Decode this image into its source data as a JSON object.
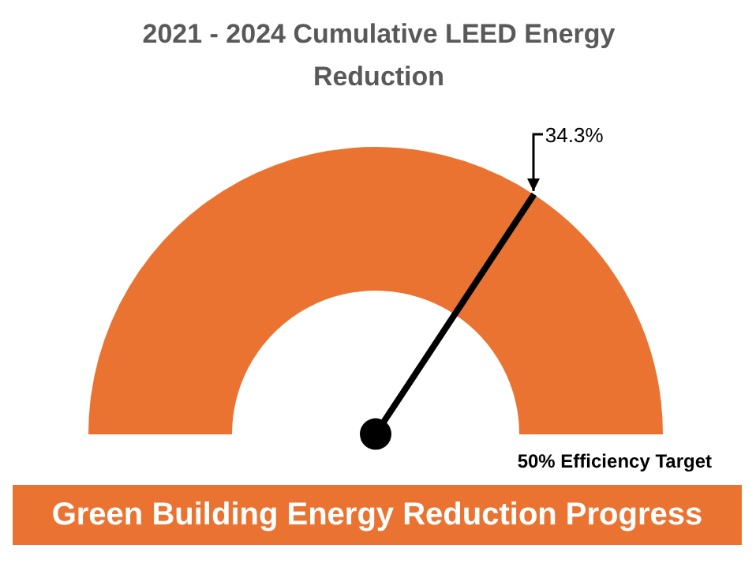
{
  "chart_data": {
    "type": "donut",
    "title": "2021 - 2024 Cumulative LEED Energy Reduction",
    "subtitle": "Green Building Energy Reduction Progress",
    "categories": [
      null,
      null
    ],
    "values": [
      68.6,
      31.4
    ],
    "colors": [
      "#eb7332",
      "#eb7332"
    ],
    "legend": false,
    "annotations": [
      "34.3%",
      "50% Efficiency Target"
    ]
  }
}
